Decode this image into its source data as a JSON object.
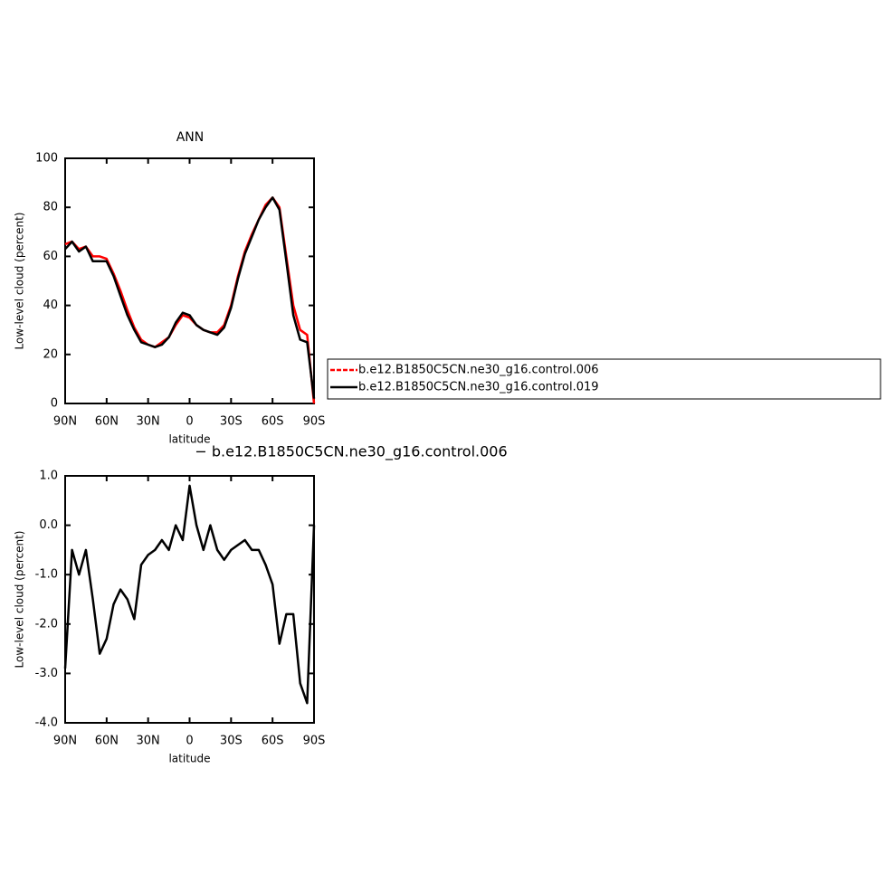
{
  "chart_data": [
    {
      "type": "line",
      "title": "ANN",
      "x_label": "latitude",
      "y_label": "Low-level cloud (percent)",
      "x": [
        90,
        85,
        80,
        75,
        70,
        65,
        60,
        55,
        50,
        45,
        40,
        35,
        30,
        25,
        20,
        15,
        10,
        5,
        0,
        -5,
        -10,
        -15,
        -20,
        -25,
        -30,
        -35,
        -40,
        -45,
        -50,
        -55,
        -60,
        -65,
        -70,
        -75,
        -80,
        -85,
        -90
      ],
      "series": [
        {
          "name": "b.e12.B1850C5CN.ne30_g16.control.006",
          "color": "#ff0000",
          "values": [
            65,
            66,
            63,
            64,
            60,
            60,
            59,
            53,
            46,
            38,
            31,
            26,
            24,
            23,
            25,
            27,
            32,
            36,
            35,
            32,
            30,
            29,
            29,
            32,
            40,
            52,
            62,
            69,
            75,
            81,
            84,
            80,
            60,
            40,
            30,
            28,
            0
          ]
        },
        {
          "name": "b.e12.B1850C5CN.ne30_g16.control.019",
          "color": "#000000",
          "values": [
            63,
            66,
            62,
            64,
            58,
            58,
            58,
            52,
            44,
            36,
            30,
            25,
            24,
            23,
            24,
            27,
            33,
            37,
            36,
            32,
            30,
            29,
            28,
            31,
            39,
            51,
            61,
            68,
            75,
            80,
            84,
            79,
            58,
            36,
            26,
            25,
            2
          ]
        }
      ],
      "xlim": [
        90,
        -90
      ],
      "xticks": [
        {
          "value": 90,
          "label": "90N"
        },
        {
          "value": 60,
          "label": "60N"
        },
        {
          "value": 30,
          "label": "30N"
        },
        0,
        {
          "value": -30,
          "label": "30S"
        },
        {
          "value": -60,
          "label": "60S"
        },
        {
          "value": -90,
          "label": "90S"
        }
      ],
      "ylim": [
        0,
        100
      ],
      "yticks": [
        0,
        20,
        40,
        60,
        80,
        100
      ],
      "legend": "right"
    },
    {
      "type": "line",
      "title": "− b.e12.B1850C5CN.ne30_g16.control.006",
      "x_label": "latitude",
      "y_label": "Low-level cloud (percent)",
      "x": [
        90,
        85,
        80,
        75,
        70,
        65,
        60,
        55,
        50,
        45,
        40,
        35,
        30,
        25,
        20,
        15,
        10,
        5,
        0,
        -5,
        -10,
        -15,
        -20,
        -25,
        -30,
        -35,
        -40,
        -45,
        -50,
        -55,
        -60,
        -65,
        -70,
        -75,
        -80,
        -85,
        -90
      ],
      "series": [
        {
          "color": "#000000",
          "values": [
            -2.9,
            -0.5,
            -1.0,
            -0.5,
            -1.5,
            -2.6,
            -2.3,
            -1.6,
            -1.3,
            -1.5,
            -1.9,
            -0.8,
            -0.6,
            -0.5,
            -0.3,
            -0.5,
            0.0,
            -0.3,
            0.8,
            0.0,
            -0.5,
            0.0,
            -0.5,
            -0.7,
            -0.5,
            -0.4,
            -0.3,
            -0.5,
            -0.5,
            -0.8,
            -1.2,
            -2.4,
            -1.8,
            -1.8,
            -3.2,
            -3.6,
            0.0
          ]
        }
      ],
      "xlim": [
        90,
        -90
      ],
      "xticks": [
        {
          "value": 90,
          "label": "90N"
        },
        {
          "value": 60,
          "label": "60N"
        },
        {
          "value": 30,
          "label": "30N"
        },
        0,
        {
          "value": -30,
          "label": "30S"
        },
        {
          "value": -60,
          "label": "60S"
        },
        {
          "value": -90,
          "label": "90S"
        }
      ],
      "ylim": [
        -4,
        1
      ],
      "yticks": [
        {
          "value": -4,
          "label": "-4.0"
        },
        {
          "value": -3,
          "label": "-3.0"
        },
        {
          "value": -2,
          "label": "-2.0"
        },
        {
          "value": -1,
          "label": "-1.0"
        },
        {
          "value": 0,
          "label": "0.0"
        },
        {
          "value": 1,
          "label": "1.0"
        }
      ]
    }
  ]
}
